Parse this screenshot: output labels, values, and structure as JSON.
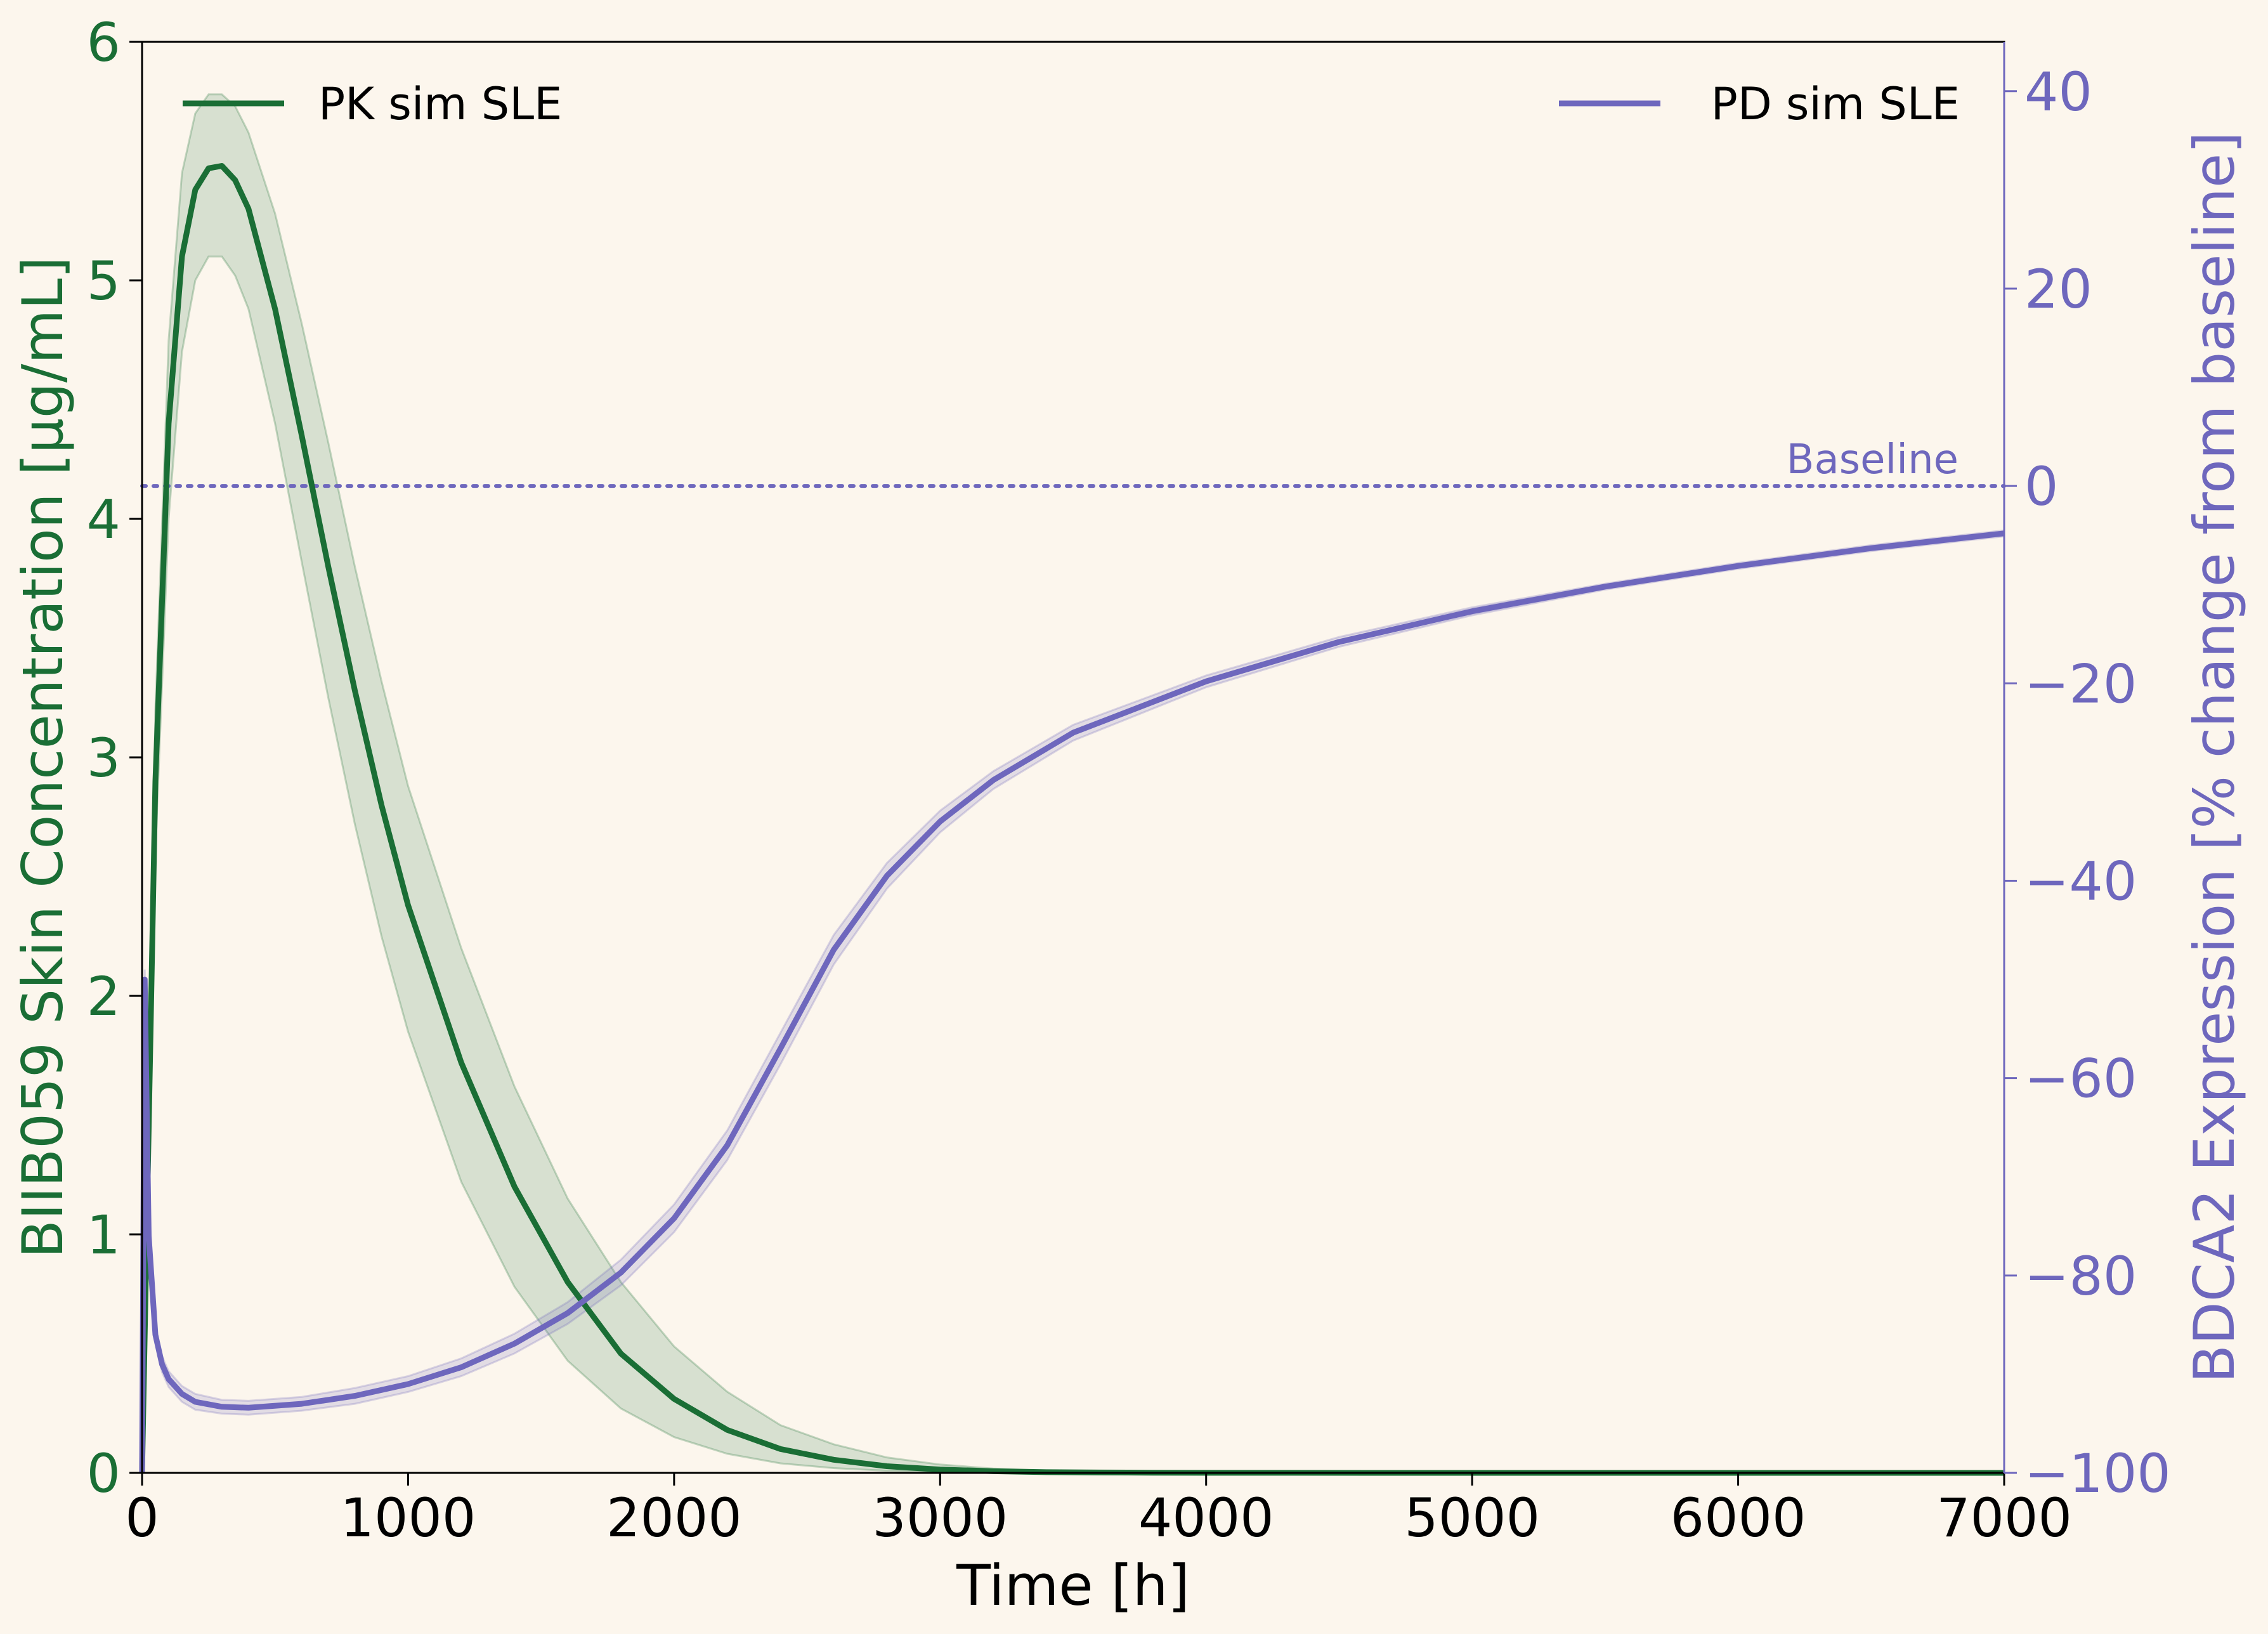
{
  "chart_data": {
    "type": "line",
    "title": "",
    "xlabel": "Time [h]",
    "ylabel_left": "BIIB059 Skin Concentration [µg/mL]",
    "ylabel_right": "BDCA2 Expression [% change from baseline]",
    "xlim": [
      0,
      7000
    ],
    "ylim_left": [
      0,
      6
    ],
    "ylim_right": [
      -100,
      45
    ],
    "x_ticks": [
      "0",
      "1000",
      "2000",
      "3000",
      "4000",
      "5000",
      "6000",
      "7000"
    ],
    "y_left_ticks": [
      "0",
      "1",
      "2",
      "3",
      "4",
      "5",
      "6"
    ],
    "y_right_ticks": [
      "−100",
      "−80",
      "−60",
      "−40",
      "−20",
      "0",
      "20",
      "40"
    ],
    "grid": false,
    "colors": {
      "pk": "#1a6e35",
      "pd": "#6e67bd",
      "background": "#fcf6ed"
    },
    "series": [
      {
        "name": "PK sim SLE",
        "axis": "left",
        "legend_position": "top-left",
        "x": [
          0,
          50,
          100,
          150,
          200,
          250,
          300,
          350,
          400,
          500,
          600,
          700,
          800,
          900,
          1000,
          1200,
          1400,
          1600,
          1800,
          2000,
          2200,
          2400,
          2600,
          2800,
          3000,
          3200,
          3400,
          3600,
          3800,
          4000,
          5000,
          6000,
          7000
        ],
        "values": [
          0,
          2.9,
          4.4,
          5.1,
          5.38,
          5.47,
          5.48,
          5.42,
          5.3,
          4.88,
          4.35,
          3.8,
          3.28,
          2.8,
          2.38,
          1.72,
          1.2,
          0.8,
          0.5,
          0.31,
          0.18,
          0.1,
          0.055,
          0.028,
          0.014,
          0.007,
          0.003,
          0.0015,
          0.0007,
          0.0003,
          0,
          0,
          0
        ],
        "lower": [
          0,
          2.6,
          4.0,
          4.7,
          5.0,
          5.1,
          5.1,
          5.02,
          4.88,
          4.4,
          3.82,
          3.25,
          2.72,
          2.25,
          1.85,
          1.22,
          0.78,
          0.47,
          0.27,
          0.15,
          0.08,
          0.04,
          0.02,
          0.009,
          0.004,
          0.002,
          0.001,
          0.0004,
          0.0002,
          0.0001,
          0,
          0,
          0
        ],
        "upper": [
          0,
          3.2,
          4.75,
          5.45,
          5.7,
          5.78,
          5.78,
          5.73,
          5.62,
          5.28,
          4.82,
          4.32,
          3.8,
          3.32,
          2.88,
          2.2,
          1.62,
          1.15,
          0.8,
          0.53,
          0.34,
          0.2,
          0.12,
          0.065,
          0.035,
          0.018,
          0.009,
          0.004,
          0.002,
          0.001,
          0,
          0,
          0
        ]
      },
      {
        "name": "PD sim SLE",
        "axis": "right",
        "legend_position": "top-right",
        "x": [
          0,
          10,
          25,
          50,
          75,
          100,
          150,
          200,
          300,
          400,
          600,
          800,
          1000,
          1200,
          1400,
          1600,
          1800,
          2000,
          2200,
          2400,
          2600,
          2800,
          3000,
          3200,
          3500,
          4000,
          4500,
          5000,
          5500,
          6000,
          6500,
          7000
        ],
        "values": [
          -100,
          -50,
          -76,
          -86,
          -89,
          -90.5,
          -92,
          -92.8,
          -93.3,
          -93.4,
          -93,
          -92.2,
          -91,
          -89.3,
          -86.9,
          -83.8,
          -79.7,
          -74.2,
          -66.8,
          -57,
          -47,
          -39.5,
          -34,
          -29.8,
          -25,
          -19.8,
          -15.8,
          -12.7,
          -10.2,
          -8.1,
          -6.3,
          -4.8
        ],
        "lower": [
          -100,
          -51,
          -77,
          -86.8,
          -89.8,
          -91.3,
          -92.8,
          -93.6,
          -94,
          -94.1,
          -93.7,
          -93,
          -91.8,
          -90.2,
          -87.9,
          -84.9,
          -81,
          -75.6,
          -68.3,
          -58.6,
          -48.5,
          -40.8,
          -35.1,
          -30.7,
          -25.8,
          -20.4,
          -16.3,
          -13.1,
          -10.5,
          -8.4,
          -6.6,
          -5.1
        ],
        "upper": [
          -100,
          -49,
          -75,
          -85.2,
          -88.2,
          -89.7,
          -91.2,
          -92,
          -92.6,
          -92.7,
          -92.3,
          -91.4,
          -90.2,
          -88.4,
          -85.9,
          -82.7,
          -78.4,
          -72.8,
          -65.3,
          -55.4,
          -45.5,
          -38.2,
          -32.9,
          -28.9,
          -24.2,
          -19.2,
          -15.3,
          -12.3,
          -9.9,
          -7.8,
          -6,
          -4.5
        ]
      }
    ],
    "annotations": [
      {
        "type": "hline",
        "axis": "right",
        "y": 0,
        "style": "dotted",
        "label": "Baseline"
      }
    ]
  }
}
